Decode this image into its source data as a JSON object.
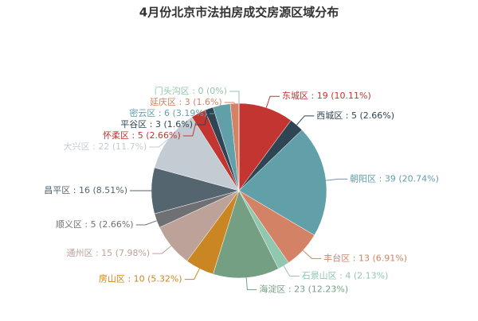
{
  "chart_data": {
    "type": "pie",
    "title": "4月份北京市法拍房成交房源区域分布",
    "values": [
      19,
      5,
      39,
      13,
      4,
      23,
      10,
      15,
      5,
      16,
      22,
      5,
      3,
      6,
      3,
      0
    ],
    "value_labels": [
      "东城区 : 19 (10.11%)",
      "西城区 : 5 (2.66%)",
      "朝阳区 : 39 (20.74%)",
      "丰台区 : 13 (6.91%)",
      "石景山区 : 4 (2.13%)",
      "海淀区 : 23 (12.23%)",
      "房山区 : 10 (5.32%)",
      "通州区 : 15 (7.98%)",
      "顺义区 : 5 (2.66%)",
      "昌平区 : 16 (8.51%)",
      "大兴区 : 22 (11.7%)",
      "怀柔区 : 5 (2.66%)",
      "平谷区 : 3 (1.6%)",
      "密云区 : 6 (3.19%)",
      "延庆区 : 3 (1.6%)",
      "门头沟区 : 0 (0%)"
    ],
    "colors": [
      "#c23531",
      "#2f4554",
      "#61a0a8",
      "#d48265",
      "#91c7ae",
      "#749f83",
      "#ca8622",
      "#bda29a",
      "#6e7074",
      "#546570",
      "#c4ccd3",
      "#c23531",
      "#2f4554",
      "#61a0a8",
      "#d48265",
      "#91c7ae"
    ]
  }
}
